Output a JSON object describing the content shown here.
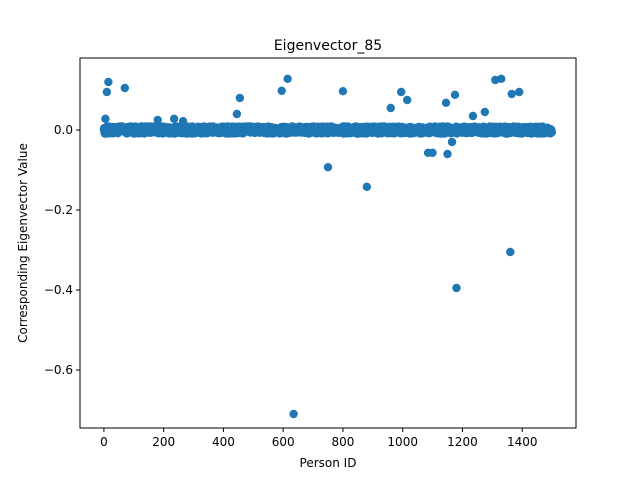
{
  "chart_data": {
    "type": "scatter",
    "title": "Eigenvector_85",
    "xlabel": "Person ID",
    "ylabel": "Corresponding Eigenvector Value",
    "xlim": [
      -80,
      1580
    ],
    "ylim": [
      -0.745,
      0.18
    ],
    "xticks": [
      0,
      200,
      400,
      600,
      800,
      1000,
      1200,
      1400
    ],
    "yticks": [
      -0.6,
      -0.4,
      -0.2,
      0.0
    ],
    "ytick_labels": [
      "−0.6",
      "−0.4",
      "−0.2",
      "0.0"
    ],
    "grid": false,
    "point_color": "#1f77b4",
    "outliers": {
      "x": [
        5,
        10,
        15,
        70,
        180,
        235,
        265,
        445,
        455,
        595,
        615,
        635,
        750,
        800,
        880,
        960,
        995,
        1015,
        1085,
        1100,
        1145,
        1150,
        1165,
        1175,
        1180,
        1235,
        1275,
        1310,
        1330,
        1360,
        1365,
        1390
      ],
      "y": [
        0.028,
        0.095,
        0.12,
        0.105,
        0.025,
        0.028,
        0.022,
        0.04,
        0.08,
        0.098,
        0.128,
        -0.71,
        -0.093,
        0.097,
        -0.142,
        0.055,
        0.095,
        0.075,
        -0.057,
        -0.057,
        0.068,
        -0.06,
        -0.03,
        0.088,
        -0.395,
        0.035,
        0.045,
        0.125,
        0.128,
        -0.305,
        0.09,
        0.095
      ]
    },
    "band": {
      "count": 1500,
      "x_start": 0,
      "x_end": 1499,
      "center": 0.0,
      "spread": 0.009
    }
  }
}
